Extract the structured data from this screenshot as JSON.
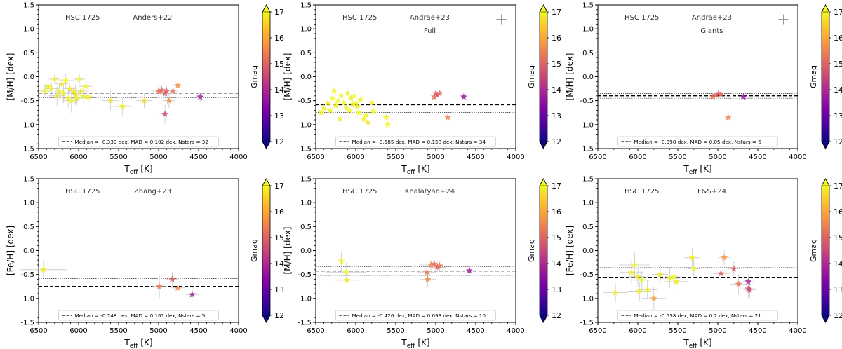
{
  "chart_data": [
    {
      "type": "scatter",
      "cluster": "HSC 1725",
      "source": "Anders+22",
      "subtitle": "",
      "ylabel": "[M/H] [dex]",
      "xlabel_main": "T",
      "xlabel_sub": "eff",
      "xlabel_unit": " [K]",
      "xlim": [
        6500,
        4000
      ],
      "ylim": [
        -1.5,
        1.5
      ],
      "xticks": [
        6500,
        6000,
        5500,
        5000,
        4500,
        4000
      ],
      "yticks": [
        -1.5,
        -1.0,
        -0.5,
        0.0,
        0.5,
        1.0,
        1.5
      ],
      "median": -0.339,
      "mad": 0.102,
      "legend": "Median = -0.339 dex, MAD = 0.102 dex, Nstars = 32",
      "show_error_cross": false,
      "points": [
        [
          6420,
          -0.3,
          17.0,
          80,
          0.15
        ],
        [
          6380,
          -0.2,
          16.9,
          60,
          0.2
        ],
        [
          6340,
          -0.25,
          17.0,
          90,
          0.15
        ],
        [
          6300,
          -0.05,
          16.9,
          70,
          0.1
        ],
        [
          6270,
          -0.4,
          16.8,
          100,
          0.2
        ],
        [
          6240,
          -0.3,
          17.0,
          60,
          0.15
        ],
        [
          6210,
          -0.15,
          16.8,
          80,
          0.1
        ],
        [
          6190,
          -0.35,
          16.9,
          90,
          0.2
        ],
        [
          6160,
          -0.08,
          17.0,
          100,
          0.15
        ],
        [
          6130,
          -0.45,
          16.9,
          70,
          0.2
        ],
        [
          6110,
          -0.25,
          16.8,
          80,
          0.1
        ],
        [
          6090,
          -0.5,
          17.0,
          100,
          0.25
        ],
        [
          6060,
          -0.3,
          16.9,
          60,
          0.15
        ],
        [
          6040,
          -0.38,
          16.8,
          90,
          0.2
        ],
        [
          6020,
          -0.45,
          16.9,
          80,
          0.15
        ],
        [
          5990,
          -0.05,
          17.0,
          70,
          0.1
        ],
        [
          5970,
          -0.3,
          16.8,
          100,
          0.2
        ],
        [
          5940,
          -0.4,
          16.9,
          60,
          0.15
        ],
        [
          5910,
          -0.2,
          17.0,
          80,
          0.1
        ],
        [
          5880,
          -0.42,
          16.9,
          90,
          0.2
        ],
        [
          5600,
          -0.5,
          16.8,
          100,
          0.2
        ],
        [
          5450,
          -0.62,
          16.9,
          120,
          0.2
        ],
        [
          5180,
          -0.5,
          16.7,
          100,
          0.15
        ],
        [
          5000,
          -0.3,
          15.2,
          80,
          0.1
        ],
        [
          4960,
          -0.28,
          15.1,
          70,
          0.1
        ],
        [
          4920,
          -0.35,
          14.8,
          60,
          0.1
        ],
        [
          4900,
          -0.3,
          15.0,
          70,
          0.1
        ],
        [
          4870,
          -0.5,
          15.6,
          80,
          0.15
        ],
        [
          4820,
          -0.3,
          15.3,
          60,
          0.1
        ],
        [
          4760,
          -0.18,
          15.7,
          70,
          0.1
        ],
        [
          4920,
          -0.78,
          14.6,
          80,
          0.2
        ],
        [
          4480,
          -0.42,
          13.8,
          60,
          0.1
        ]
      ]
    },
    {
      "type": "scatter",
      "cluster": "HSC 1725",
      "source": "Andrae+23",
      "subtitle": "Full",
      "ylabel": "[M/H] [dex]",
      "xlabel_main": "T",
      "xlabel_sub": "eff",
      "xlabel_unit": " [K]",
      "xlim": [
        6500,
        4000
      ],
      "ylim": [
        -1.5,
        1.5
      ],
      "xticks": [
        6500,
        6000,
        5500,
        5000,
        4500,
        4000
      ],
      "yticks": [
        -1.5,
        -1.0,
        -0.5,
        0.0,
        0.5,
        1.0,
        1.5
      ],
      "median": -0.585,
      "mad": 0.158,
      "legend": "Median = -0.585 dex, MAD = 0.158 dex, Nstars = 34",
      "show_error_cross": true,
      "points": [
        [
          6430,
          -0.75,
          16.9,
          0,
          0
        ],
        [
          6400,
          -0.65,
          17.0,
          0,
          0
        ],
        [
          6350,
          -0.55,
          16.8,
          0,
          0
        ],
        [
          6320,
          -0.7,
          16.9,
          0,
          0
        ],
        [
          6290,
          -0.45,
          17.0,
          0,
          0
        ],
        [
          6270,
          -0.3,
          16.9,
          0,
          0
        ],
        [
          6250,
          -0.6,
          16.8,
          0,
          0
        ],
        [
          6220,
          -0.5,
          17.0,
          0,
          0
        ],
        [
          6200,
          -0.88,
          16.9,
          0,
          0
        ],
        [
          6180,
          -0.4,
          16.9,
          0,
          0
        ],
        [
          6150,
          -0.55,
          17.0,
          0,
          0
        ],
        [
          6120,
          -0.65,
          16.8,
          0,
          0
        ],
        [
          6100,
          -0.35,
          16.9,
          0,
          0
        ],
        [
          6080,
          -0.7,
          17.0,
          0,
          0
        ],
        [
          6060,
          -0.45,
          16.8,
          0,
          0
        ],
        [
          6040,
          -0.58,
          16.9,
          0,
          0
        ],
        [
          6020,
          -0.4,
          17.0,
          0,
          0
        ],
        [
          6000,
          -0.55,
          16.9,
          0,
          0
        ],
        [
          5980,
          -0.62,
          16.8,
          0,
          0
        ],
        [
          5960,
          -0.75,
          17.0,
          0,
          0
        ],
        [
          5940,
          -0.48,
          16.9,
          0,
          0
        ],
        [
          5900,
          -0.88,
          16.9,
          0,
          0
        ],
        [
          5870,
          -0.8,
          17.0,
          0,
          0
        ],
        [
          5850,
          -0.95,
          16.8,
          0,
          0
        ],
        [
          5800,
          -0.55,
          16.9,
          0,
          0
        ],
        [
          5780,
          -0.72,
          17.0,
          0,
          0
        ],
        [
          5620,
          -0.85,
          16.9,
          0,
          0
        ],
        [
          5600,
          -1.0,
          17.0,
          0,
          0
        ],
        [
          5020,
          -0.42,
          15.2,
          0,
          0
        ],
        [
          5000,
          -0.35,
          15.0,
          0,
          0
        ],
        [
          4980,
          -0.38,
          14.8,
          0,
          0
        ],
        [
          4950,
          -0.35,
          15.1,
          0,
          0
        ],
        [
          4850,
          -0.85,
          15.5,
          0,
          0
        ],
        [
          4650,
          -0.42,
          13.6,
          0,
          0
        ]
      ]
    },
    {
      "type": "scatter",
      "cluster": "HSC 1725",
      "source": "Andrae+23",
      "subtitle": "Giants",
      "ylabel": "[M/H] [dex]",
      "xlabel_main": "T",
      "xlabel_sub": "eff",
      "xlabel_unit": " [K]",
      "xlim": [
        6500,
        4000
      ],
      "ylim": [
        -1.5,
        1.5
      ],
      "xticks": [
        6500,
        6000,
        5500,
        5000,
        4500,
        4000
      ],
      "yticks": [
        -1.5,
        -1.0,
        -0.5,
        0.0,
        0.5,
        1.0,
        1.5
      ],
      "median": -0.398,
      "mad": 0.05,
      "legend": "Median = -0.398 dex, MAD = 0.05 dex, Nstars = 6",
      "show_error_cross": true,
      "points": [
        [
          5060,
          -0.42,
          15.2,
          0,
          0
        ],
        [
          5020,
          -0.38,
          15.0,
          0,
          0
        ],
        [
          4990,
          -0.35,
          14.9,
          0,
          0
        ],
        [
          4960,
          -0.36,
          15.1,
          0,
          0
        ],
        [
          4870,
          -0.85,
          15.5,
          0,
          0
        ],
        [
          4680,
          -0.42,
          13.5,
          0,
          0
        ]
      ]
    },
    {
      "type": "scatter",
      "cluster": "HSC 1725",
      "source": "Zhang+23",
      "subtitle": "",
      "ylabel": "[Fe/H] [dex]",
      "xlabel_main": "T",
      "xlabel_sub": "eff",
      "xlabel_unit": " [K]",
      "xlim": [
        6500,
        4000
      ],
      "ylim": [
        -1.5,
        1.5
      ],
      "xticks": [
        6500,
        6000,
        5500,
        5000,
        4500,
        4000
      ],
      "yticks": [
        -1.5,
        -1.0,
        -0.5,
        0.0,
        0.5,
        1.0,
        1.5
      ],
      "median": -0.748,
      "mad": 0.161,
      "legend": "Median = -0.748 dex, MAD = 0.161 dex, Nstars = 5",
      "show_error_cross": false,
      "points": [
        [
          6440,
          -0.4,
          16.9,
          300,
          0.2
        ],
        [
          4990,
          -0.75,
          15.4,
          100,
          0.25
        ],
        [
          4830,
          -0.6,
          14.9,
          80,
          0.15
        ],
        [
          4760,
          -0.78,
          15.5,
          90,
          0.15
        ],
        [
          4580,
          -0.92,
          13.9,
          80,
          0.15
        ]
      ]
    },
    {
      "type": "scatter",
      "cluster": "HSC 1725",
      "source": "Khalatyan+24",
      "subtitle": "",
      "ylabel": "[M/H] [dex]",
      "xlabel_main": "T",
      "xlabel_sub": "eff",
      "xlabel_unit": " [K]",
      "xlim": [
        6500,
        4000
      ],
      "ylim": [
        -1.5,
        1.5
      ],
      "xticks": [
        6500,
        6000,
        5500,
        5000,
        4500,
        4000
      ],
      "yticks": [
        -1.5,
        -1.0,
        -0.5,
        0.0,
        0.5,
        1.0,
        1.5
      ],
      "median": -0.426,
      "mad": 0.093,
      "legend": "Median = -0.426 dex, MAD = 0.093 dex, Nstars = 10",
      "show_error_cross": false,
      "points": [
        [
          6180,
          -0.22,
          16.9,
          200,
          0.2
        ],
        [
          6120,
          -0.45,
          17.0,
          250,
          0.2
        ],
        [
          6110,
          -0.62,
          16.8,
          150,
          0.2
        ],
        [
          5110,
          -0.45,
          15.4,
          120,
          0.15
        ],
        [
          5100,
          -0.6,
          15.6,
          100,
          0.15
        ],
        [
          5060,
          -0.3,
          15.5,
          150,
          0.1
        ],
        [
          5020,
          -0.28,
          15.2,
          200,
          0.1
        ],
        [
          4980,
          -0.35,
          15.0,
          100,
          0.1
        ],
        [
          4950,
          -0.32,
          15.3,
          120,
          0.1
        ],
        [
          4580,
          -0.42,
          13.8,
          80,
          0.1
        ]
      ]
    },
    {
      "type": "scatter",
      "cluster": "HSC 1725",
      "source": "F&S+24",
      "subtitle": "",
      "ylabel": "[Fe/H] [dex]",
      "xlabel_main": "T",
      "xlabel_sub": "eff",
      "xlabel_unit": " [K]",
      "xlim": [
        6500,
        4000
      ],
      "ylim": [
        -1.5,
        1.5
      ],
      "xticks": [
        6500,
        6000,
        5500,
        5000,
        4500,
        4000
      ],
      "yticks": [
        -1.5,
        -1.0,
        -0.5,
        0.0,
        0.5,
        1.0,
        1.5
      ],
      "median": -0.558,
      "mad": 0.2,
      "legend": "Median = -0.558 dex, MAD = 0.2 dex, Nstars = 21",
      "show_error_cross": false,
      "points": [
        [
          6280,
          -0.88,
          16.8,
          150,
          0.2
        ],
        [
          6080,
          -0.45,
          16.9,
          150,
          0.25
        ],
        [
          6040,
          -0.3,
          17.0,
          200,
          0.25
        ],
        [
          6000,
          -0.55,
          16.8,
          120,
          0.2
        ],
        [
          5980,
          -0.85,
          16.9,
          150,
          0.2
        ],
        [
          5950,
          -0.62,
          17.0,
          100,
          0.2
        ],
        [
          5880,
          -0.82,
          16.9,
          120,
          0.2
        ],
        [
          5800,
          -1.0,
          15.9,
          150,
          0.25
        ],
        [
          5720,
          -0.5,
          16.8,
          100,
          0.2
        ],
        [
          5600,
          -0.58,
          16.9,
          120,
          0.2
        ],
        [
          5550,
          -0.55,
          17.0,
          100,
          0.2
        ],
        [
          5520,
          -0.65,
          16.8,
          150,
          0.2
        ],
        [
          5320,
          -0.15,
          16.9,
          100,
          0.2
        ],
        [
          5300,
          -0.38,
          17.0,
          80,
          0.2
        ],
        [
          4920,
          -0.15,
          15.8,
          80,
          0.15
        ],
        [
          4960,
          -0.48,
          15.0,
          100,
          0.2
        ],
        [
          4800,
          -0.38,
          14.8,
          80,
          0.15
        ],
        [
          4740,
          -0.7,
          15.3,
          100,
          0.2
        ],
        [
          4620,
          -0.65,
          13.9,
          80,
          0.15
        ],
        [
          4620,
          -0.8,
          14.8,
          100,
          0.2
        ],
        [
          4600,
          -0.82,
          14.5,
          80,
          0.15
        ]
      ]
    }
  ],
  "colorbar": {
    "label": "Gmag",
    "min": 12,
    "max": 17,
    "ticks": [
      "12",
      "13",
      "14",
      "15",
      "16",
      "17"
    ]
  },
  "colors": {
    "median_line": "#000000",
    "mad_line": "#000000",
    "error_bar": "#c8c8c8"
  }
}
